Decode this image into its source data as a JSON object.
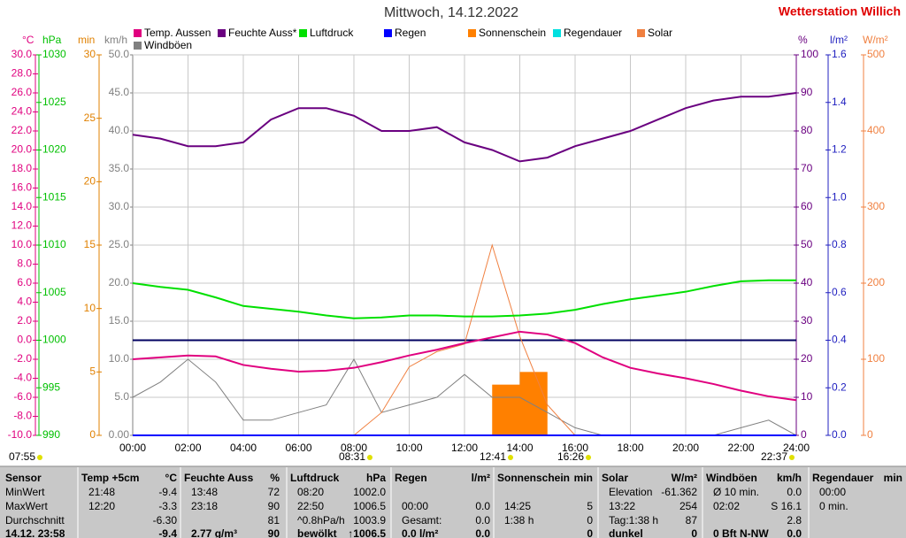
{
  "chart_data": {
    "type": "line",
    "title": "Mittwoch, 14.12.2022",
    "station": "Wetterstation Willich",
    "x": [
      0,
      1,
      2,
      3,
      4,
      5,
      6,
      7,
      8,
      9,
      10,
      11,
      12,
      13,
      14,
      15,
      16,
      17,
      18,
      19,
      20,
      21,
      22,
      23,
      24
    ],
    "xlim": [
      0,
      24
    ],
    "xticks": [
      {
        "value": 0,
        "label": "00:00"
      },
      {
        "value": 2,
        "label": "02:00"
      },
      {
        "value": 4,
        "label": "04:00"
      },
      {
        "value": 6,
        "label": "06:00"
      },
      {
        "value": 8,
        "label": "08:00"
      },
      {
        "value": 10,
        "label": "10:00"
      },
      {
        "value": 12,
        "label": "12:00"
      },
      {
        "value": 14,
        "label": "14:00"
      },
      {
        "value": 16,
        "label": "16:00"
      },
      {
        "value": 18,
        "label": "18:00"
      },
      {
        "value": 20,
        "label": "20:00"
      },
      {
        "value": 22,
        "label": "22:00"
      },
      {
        "value": 24,
        "label": "24:00"
      }
    ],
    "grid": true,
    "axes": [
      {
        "name": "°C",
        "color": "#e0007f",
        "lim": [
          -10,
          30
        ],
        "ticks": [
          {
            "value": 30,
            "label": "30.0"
          },
          {
            "value": 28,
            "label": "28.0"
          },
          {
            "value": 26,
            "label": "26.0"
          },
          {
            "value": 24,
            "label": "24.0"
          },
          {
            "value": 22,
            "label": "22.0"
          },
          {
            "value": 20,
            "label": "20.0"
          },
          {
            "value": 18,
            "label": "18.0"
          },
          {
            "value": 16,
            "label": "16.0"
          },
          {
            "value": 14,
            "label": "14.0"
          },
          {
            "value": 12,
            "label": "12.0"
          },
          {
            "value": 10,
            "label": "10.0"
          },
          {
            "value": 8,
            "label": "8.0"
          },
          {
            "value": 6,
            "label": "6.0"
          },
          {
            "value": 4,
            "label": "4.0"
          },
          {
            "value": 2,
            "label": "2.0"
          },
          {
            "value": 0,
            "label": "0.0"
          },
          {
            "value": -2,
            "label": "-2.0"
          },
          {
            "value": -4,
            "label": "-4.0"
          },
          {
            "value": -6,
            "label": "-6.0"
          },
          {
            "value": -8,
            "label": "-8.0"
          },
          {
            "value": -10,
            "label": "-10.0"
          }
        ]
      },
      {
        "name": "hPa",
        "color": "#00c000",
        "lim": [
          990,
          1030
        ],
        "ticks": [
          1030,
          1025,
          1020,
          1015,
          1010,
          1005,
          1000,
          995,
          990
        ]
      },
      {
        "name": "min",
        "color": "#e08000",
        "lim": [
          0,
          30
        ],
        "ticks": [
          30,
          25,
          20,
          15,
          10,
          5,
          0
        ]
      },
      {
        "name": "km/h",
        "color": "#808080",
        "lim": [
          0,
          50
        ],
        "ticks": [
          {
            "value": 50,
            "label": "50.0"
          },
          {
            "value": 45,
            "label": "45.0"
          },
          {
            "value": 40,
            "label": "40.0"
          },
          {
            "value": 35,
            "label": "35.0"
          },
          {
            "value": 30,
            "label": "30.0"
          },
          {
            "value": 25,
            "label": "25.0"
          },
          {
            "value": 20,
            "label": "20.0"
          },
          {
            "value": 15,
            "label": "15.0"
          },
          {
            "value": 10,
            "label": "10.0"
          },
          {
            "value": 5,
            "label": "5.0"
          },
          {
            "value": 0,
            "label": "0.00"
          }
        ]
      },
      {
        "name": "%",
        "color": "#6a0080",
        "lim": [
          0,
          100
        ],
        "ticks": [
          100,
          90,
          80,
          70,
          60,
          50,
          40,
          30,
          20,
          10,
          0
        ]
      },
      {
        "name": "l/m²",
        "color": "#2020c0",
        "lim": [
          0,
          1.6
        ],
        "ticks": [
          1.6,
          1.4,
          1.2,
          {
            "value": 1,
            "label": "1.0"
          },
          0.8,
          0.6,
          0.4,
          0.2,
          {
            "value": 0,
            "label": "0.0"
          }
        ]
      },
      {
        "name": "W/m²",
        "color": "#f08040",
        "lim": [
          0,
          500
        ],
        "ticks": [
          500,
          400,
          300,
          200,
          100,
          0
        ]
      }
    ],
    "series": [
      {
        "name": "Temp. Aussen",
        "color": "#e0007f",
        "axis": 0,
        "values": [
          -2.0,
          -1.8,
          -1.6,
          -1.7,
          -2.6,
          -3.0,
          -3.3,
          -3.2,
          -2.9,
          -2.3,
          -1.6,
          -1.0,
          -0.3,
          0.3,
          0.9,
          0.6,
          -0.3,
          -1.8,
          -2.9,
          -3.5,
          -4.0,
          -4.6,
          -5.3,
          -5.9,
          -6.3
        ]
      },
      {
        "name": "Feuchte Auss*",
        "color": "#6a0080",
        "axis": 4,
        "values": [
          79,
          78,
          76,
          76,
          77,
          83,
          86,
          86,
          84,
          80,
          80,
          81,
          77,
          75,
          72,
          73,
          76,
          78,
          80,
          83,
          86,
          88,
          89,
          89,
          90
        ]
      },
      {
        "name": "Luftdruck",
        "color": "#00e000",
        "axis": 1,
        "values": [
          1006.0,
          1005.6,
          1005.3,
          1004.5,
          1003.6,
          1003.3,
          1003.0,
          1002.6,
          1002.3,
          1002.4,
          1002.6,
          1002.6,
          1002.5,
          1002.5,
          1002.6,
          1002.8,
          1003.2,
          1003.8,
          1004.3,
          1004.7,
          1005.1,
          1005.7,
          1006.2,
          1006.3,
          1006.3
        ]
      },
      {
        "name": "Regen",
        "color": "#0000ff",
        "axis": 5,
        "values": [
          0,
          0,
          0,
          0,
          0,
          0,
          0,
          0,
          0,
          0,
          0,
          0,
          0,
          0,
          0,
          0,
          0,
          0,
          0,
          0,
          0,
          0,
          0,
          0,
          0
        ]
      },
      {
        "name": "Sonnenschein",
        "color": "#ff8000",
        "axis": 2,
        "bars": true,
        "values": [
          0,
          0,
          0,
          0,
          0,
          0,
          0,
          0,
          0,
          0,
          0,
          0,
          0,
          4,
          5,
          0,
          0,
          0,
          0,
          0,
          0,
          0,
          0,
          0,
          0
        ]
      },
      {
        "name": "Regendauer",
        "color": "#00e0e0",
        "axis": 2,
        "values": [
          0,
          0,
          0,
          0,
          0,
          0,
          0,
          0,
          0,
          0,
          0,
          0,
          0,
          0,
          0,
          0,
          0,
          0,
          0,
          0,
          0,
          0,
          0,
          0,
          0
        ]
      },
      {
        "name": "Solar",
        "color": "#f08040",
        "axis": 6,
        "values": [
          0,
          0,
          0,
          0,
          0,
          0,
          0,
          0,
          0,
          30,
          90,
          110,
          120,
          250,
          130,
          40,
          0,
          0,
          0,
          0,
          0,
          0,
          0,
          0,
          0
        ]
      },
      {
        "name": "Windböen",
        "color": "#808080",
        "axis": 3,
        "values": [
          5,
          7,
          10,
          7,
          2,
          2,
          3,
          4,
          10,
          3,
          4,
          5,
          8,
          5,
          5,
          3,
          1,
          0,
          0,
          0,
          0,
          0,
          1,
          2,
          0
        ]
      }
    ],
    "annotations": [
      "07:55",
      "08:31",
      "12:41",
      "16:26",
      "22:37"
    ]
  },
  "table": {
    "row_labels": [
      "Sensor",
      "MinWert",
      "MaxWert",
      "Durchschnitt",
      "14.12. 23:58"
    ],
    "columns": [
      {
        "header": [
          "Temp +5cm",
          "°C"
        ],
        "rows": [
          [
            "21:48",
            "-9.4"
          ],
          [
            "12:20",
            "-3.3"
          ],
          [
            null,
            "-6.30"
          ],
          [
            null,
            "-9.4"
          ]
        ]
      },
      {
        "header": [
          "Feuchte Auss",
          "%"
        ],
        "rows": [
          [
            "13:48",
            "72"
          ],
          [
            "23:18",
            "90"
          ],
          [
            null,
            "81"
          ],
          [
            "2.77 g/m³",
            "90"
          ]
        ]
      },
      {
        "header": [
          "Luftdruck",
          "hPa"
        ],
        "rows": [
          [
            "08:20",
            "1002.0"
          ],
          [
            "22:50",
            "1006.5"
          ],
          [
            "^0.8hPa/h",
            "1003.9"
          ],
          [
            "bewölkt",
            "↑1006.5"
          ]
        ]
      },
      {
        "header": [
          "Regen",
          "l/m²"
        ],
        "rows": [
          [
            null,
            null
          ],
          [
            "00:00",
            "0.0"
          ],
          [
            "Gesamt:",
            "0.0"
          ],
          [
            "0.0 l/m²",
            "0.0"
          ]
        ]
      },
      {
        "header": [
          "Sonnenschein",
          "min"
        ],
        "rows": [
          [
            null,
            null
          ],
          [
            "14:25",
            "5"
          ],
          [
            "1:38 h",
            "0"
          ],
          [
            null,
            "0"
          ]
        ]
      },
      {
        "header": [
          "Solar",
          "W/m²"
        ],
        "rows": [
          [
            "Elevation",
            "-61.362"
          ],
          [
            "13:22",
            "254"
          ],
          [
            "Tag:1:38 h",
            "87"
          ],
          [
            "dunkel",
            "0"
          ]
        ]
      },
      {
        "header": [
          "Windböen",
          "km/h"
        ],
        "rows": [
          [
            "Ø 10 min.",
            "0.0"
          ],
          [
            "02:02",
            "S 16.1"
          ],
          [
            null,
            "2.8"
          ],
          [
            "0 Bft N-NW",
            "0.0"
          ]
        ]
      },
      {
        "header": [
          "Regendauer",
          "min"
        ],
        "rows": [
          [
            "00:00",
            null
          ],
          [
            "0 min.",
            null
          ],
          [
            null,
            null
          ],
          [
            null,
            null
          ]
        ]
      }
    ]
  }
}
